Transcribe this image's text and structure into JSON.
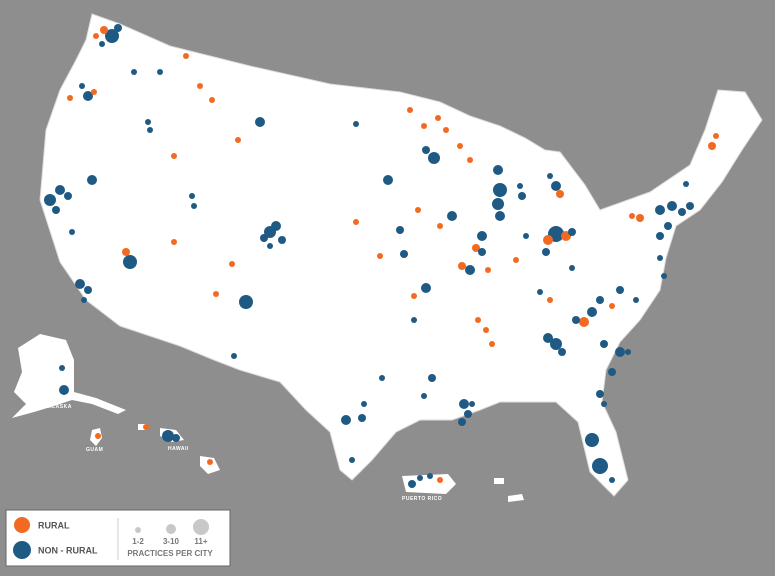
{
  "map_labels": {
    "alaska": "ALASKA",
    "guam": "GUAM",
    "hawaii": "HAWAII",
    "puerto_rico": "PUERTO RICO"
  },
  "legend": {
    "rural": "RURAL",
    "non_rural": "NON - RURAL",
    "sizes": [
      "1-2",
      "3-10",
      "11+"
    ],
    "size_title": "PRACTICES PER CITY"
  }
}
